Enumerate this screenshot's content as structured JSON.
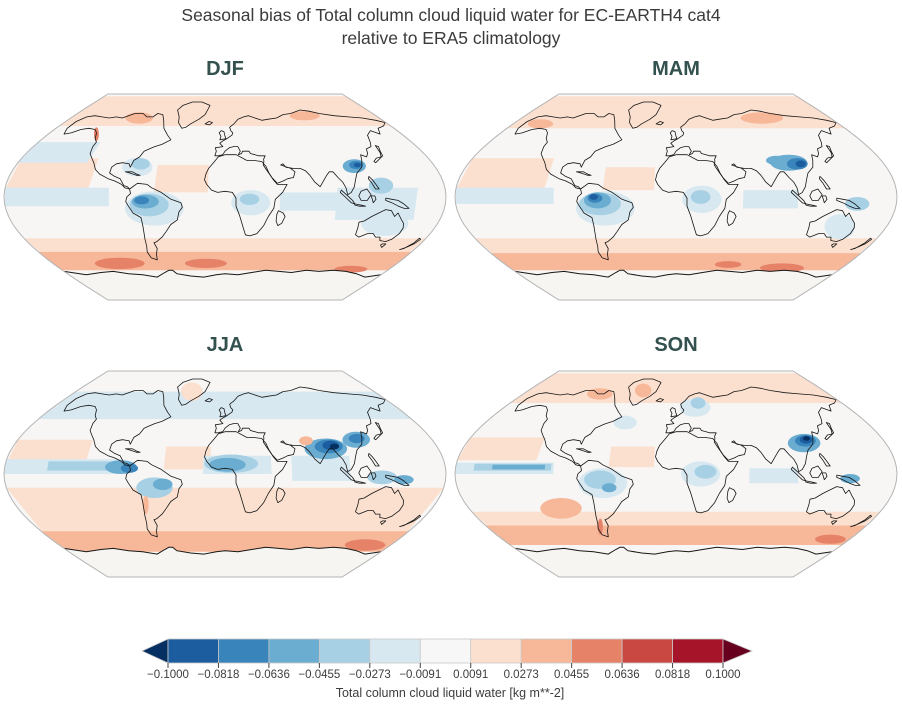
{
  "figure": {
    "title_line1": "Seasonal bias of Total column cloud liquid water for EC-EARTH4 cat4",
    "title_line2": "relative to ERA5 climatology",
    "background": "#ffffff",
    "title_color": "#3b3b3b",
    "panel_title_color": "#33514e"
  },
  "chart_data": {
    "type": "map-contour",
    "projection": "robinson",
    "variable": "Total column cloud liquid water",
    "units": "kg m**-2",
    "model": "EC-EARTH4 cat4",
    "reference": "ERA5 climatology",
    "colorbar": {
      "label": "Total column cloud liquid water [kg m**-2]",
      "extend": "both",
      "levels": [
        -0.1,
        -0.0818,
        -0.0636,
        -0.0455,
        -0.0273,
        -0.0091,
        0.0091,
        0.0273,
        0.0455,
        0.0636,
        0.0818,
        0.1
      ],
      "tick_labels": [
        "−0.1000",
        "−0.0818",
        "−0.0636",
        "−0.0455",
        "−0.0273",
        "−0.0091",
        "0.0091",
        "0.0273",
        "0.0455",
        "0.0636",
        "0.0818",
        "0.1000"
      ],
      "colors": [
        "#053061",
        "#1c5d9f",
        "#3884bb",
        "#6bacd1",
        "#a7d0e4",
        "#d7e8f1",
        "#f7f7f7",
        "#fce0cf",
        "#f7b799",
        "#e58268",
        "#ca4842",
        "#a51429",
        "#67001f"
      ],
      "base_color": "#f7f6f4",
      "outline_color": "#c8c8c8",
      "tick_color": "#444444"
    },
    "panels": [
      {
        "season": "DJF",
        "grid_pos": [
          0,
          0
        ],
        "bands": [
          [
            -180,
            180,
            62,
            88,
            7
          ],
          [
            -180,
            180,
            -62,
            -36,
            7
          ],
          [
            -180,
            180,
            -64,
            -48,
            8
          ],
          [
            -180,
            -112,
            6,
            34,
            7
          ],
          [
            -58,
            -14,
            4,
            28,
            7
          ],
          [
            -180,
            -95,
            -8,
            8,
            5
          ],
          [
            -180,
            -120,
            30,
            48,
            5
          ],
          [
            45,
            105,
            -12,
            4,
            5
          ],
          [
            92,
            158,
            -20,
            8,
            5
          ]
        ],
        "blobs": [
          [
            -110,
            -58,
            26,
            5,
            9
          ],
          [
            -20,
            -58,
            22,
            4,
            9
          ],
          [
            138,
            -63,
            18,
            3,
            9
          ],
          [
            -100,
            69,
            16,
            5,
            8
          ],
          [
            95,
            71,
            18,
            4,
            8
          ],
          [
            135,
            -23,
            20,
            11,
            5
          ],
          [
            128,
            10,
            10,
            7,
            4
          ],
          [
            -75,
            26,
            13,
            8,
            5
          ],
          [
            -73,
            29,
            8,
            5,
            4
          ],
          [
            -58,
            -10,
            24,
            15,
            5
          ],
          [
            -62,
            -7,
            16,
            10,
            4
          ],
          [
            -65,
            -4,
            11,
            6,
            3
          ],
          [
            -68,
            -3,
            6,
            3.5,
            2
          ],
          [
            21,
            -5,
            16,
            11,
            5
          ],
          [
            20,
            -2,
            8,
            5,
            4
          ],
          [
            111,
            27,
            10,
            6,
            3
          ],
          [
            113,
            28,
            6,
            3.5,
            2
          ],
          [
            114,
            28,
            3,
            2,
            1
          ],
          [
            -131,
            55,
            2.5,
            6,
            9
          ]
        ]
      },
      {
        "season": "MAM",
        "grid_pos": [
          0,
          1
        ],
        "bands": [
          [
            -180,
            180,
            60,
            88,
            7
          ],
          [
            -180,
            180,
            -60,
            -36,
            7
          ],
          [
            -180,
            180,
            -64,
            -49,
            8
          ],
          [
            -180,
            -108,
            6,
            34,
            7
          ],
          [
            -60,
            -18,
            6,
            26,
            7
          ],
          [
            -180,
            -100,
            -6,
            8,
            5
          ],
          [
            55,
            100,
            -10,
            6,
            5
          ]
        ],
        "blobs": [
          [
            115,
            -62,
            24,
            4,
            9
          ],
          [
            55,
            -59,
            14,
            3,
            9
          ],
          [
            100,
            69,
            25,
            5,
            8
          ],
          [
            -150,
            64,
            14,
            4,
            8
          ],
          [
            140,
            -26,
            13,
            11,
            5
          ],
          [
            148,
            -6,
            10,
            6,
            4
          ],
          [
            -58,
            -10,
            24,
            15,
            5
          ],
          [
            -62,
            -6,
            17,
            10,
            4
          ],
          [
            -64,
            -3,
            11,
            7,
            3
          ],
          [
            -66,
            -1,
            6,
            4,
            2
          ],
          [
            -67,
            0,
            3.5,
            2.5,
            1
          ],
          [
            21,
            -2,
            16,
            12,
            5
          ],
          [
            20,
            0,
            8,
            6,
            4
          ],
          [
            98,
            30,
            16,
            7,
            3
          ],
          [
            105,
            29,
            9,
            5,
            2
          ],
          [
            108,
            29,
            4.5,
            3,
            1
          ],
          [
            88,
            32,
            9,
            4,
            3
          ]
        ]
      },
      {
        "season": "JJA",
        "grid_pos": [
          1,
          0
        ],
        "bands": [
          [
            -180,
            180,
            -52,
            -12,
            7
          ],
          [
            -180,
            180,
            -68,
            -50,
            8
          ],
          [
            -180,
            180,
            48,
            72,
            5
          ],
          [
            -180,
            -115,
            6,
            30,
            7
          ],
          [
            -50,
            -12,
            4,
            24,
            7
          ],
          [
            -180,
            -85,
            0,
            13,
            5
          ],
          [
            -145,
            -85,
            3,
            11,
            4
          ],
          [
            -18,
            38,
            0,
            16,
            5
          ],
          [
            55,
            103,
            -6,
            16,
            5
          ]
        ],
        "blobs": [
          [
            152,
            -62,
            22,
            5,
            9
          ],
          [
            -40,
            72,
            13,
            8,
            7
          ],
          [
            -85,
            6,
            13,
            6,
            3
          ],
          [
            -78,
            5,
            7,
            4,
            2
          ],
          [
            -58,
            -12,
            15,
            9,
            4
          ],
          [
            -51,
            -9,
            8,
            5,
            3
          ],
          [
            -68,
            -27,
            2.5,
            8,
            8
          ],
          [
            5,
            9,
            22,
            8,
            4
          ],
          [
            2,
            8,
            15,
            6,
            3
          ],
          [
            85,
            22,
            18,
            9,
            3
          ],
          [
            88,
            24,
            12,
            6,
            2
          ],
          [
            90,
            25,
            7,
            4,
            1
          ],
          [
            93,
            24,
            4,
            2.5,
            0
          ],
          [
            114,
            30,
            12,
            7,
            3
          ],
          [
            115,
            31,
            7,
            4,
            2
          ],
          [
            70,
            29,
            6,
            4,
            8
          ],
          [
            128,
            -3,
            12,
            6,
            4
          ],
          [
            146,
            -5,
            8,
            4,
            3
          ]
        ]
      },
      {
        "season": "SON",
        "grid_pos": [
          1,
          1
        ],
        "bands": [
          [
            -180,
            180,
            62,
            88,
            7
          ],
          [
            -180,
            180,
            -58,
            -33,
            7
          ],
          [
            -180,
            180,
            -62,
            -45,
            8
          ],
          [
            -180,
            -115,
            12,
            32,
            7
          ],
          [
            -55,
            -18,
            6,
            24,
            7
          ],
          [
            -180,
            -100,
            0,
            10,
            5
          ],
          [
            -165,
            -102,
            3,
            9,
            4
          ],
          [
            -150,
            -107,
            4,
            8,
            3
          ],
          [
            60,
            100,
            -8,
            5,
            5
          ]
        ],
        "blobs": [
          [
            -100,
            -30,
            18,
            9,
            8
          ],
          [
            160,
            -57,
            16,
            4,
            9
          ],
          [
            -72,
            -46,
            2.5,
            7,
            9
          ],
          [
            -40,
            73,
            10,
            6,
            8
          ],
          [
            -90,
            70,
            15,
            5,
            8
          ],
          [
            20,
            58,
            16,
            8,
            5
          ],
          [
            24,
            62,
            8,
            5,
            4
          ],
          [
            -48,
            45,
            11,
            6,
            5
          ],
          [
            -60,
            -8,
            20,
            13,
            5
          ],
          [
            -62,
            -5,
            13,
            8,
            4
          ],
          [
            -55,
            -12,
            6,
            4,
            3
          ],
          [
            20,
            0,
            16,
            11,
            5
          ],
          [
            24,
            2,
            9,
            6,
            4
          ],
          [
            110,
            27,
            14,
            8,
            3
          ],
          [
            112,
            29,
            9,
            5,
            2
          ],
          [
            113,
            30,
            5.5,
            3.5,
            1
          ],
          [
            114,
            31,
            3,
            2,
            0
          ],
          [
            142,
            -4,
            8,
            4,
            3
          ]
        ]
      }
    ]
  }
}
